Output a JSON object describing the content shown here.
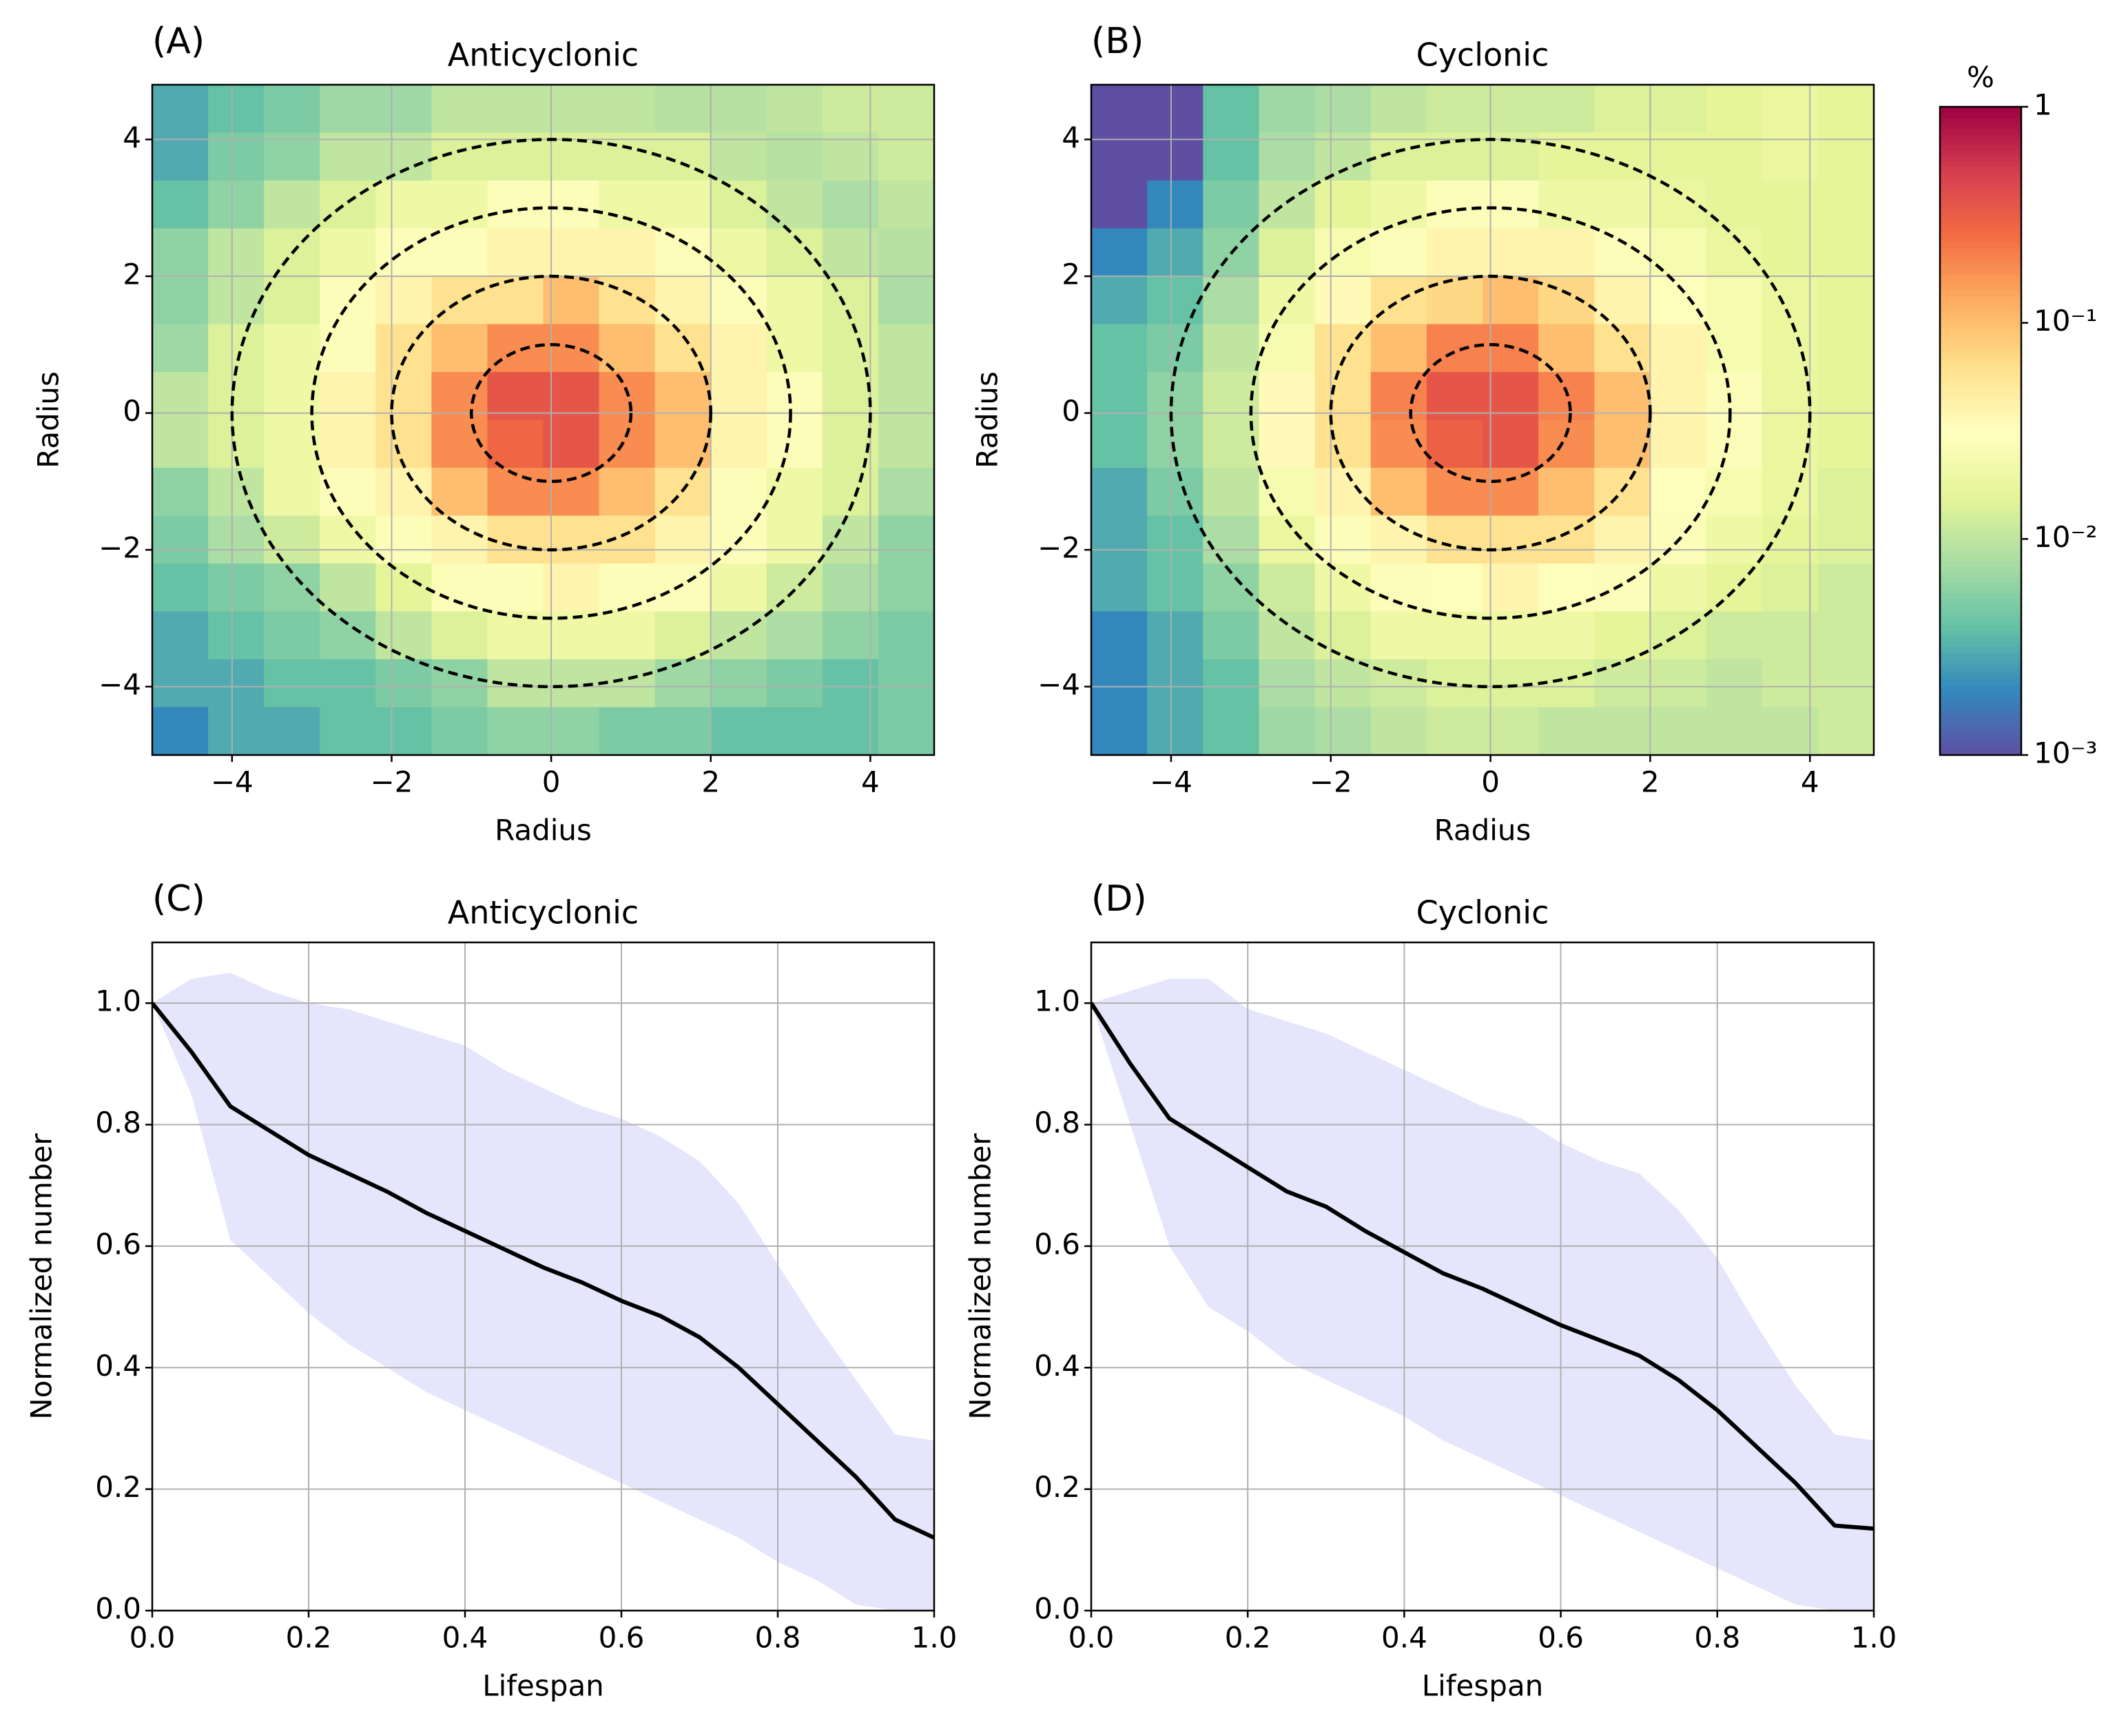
{
  "chart_data": [
    {
      "type": "heatmap",
      "label": "(A)",
      "title": "Anticyclonic",
      "xlabel": "Radius",
      "ylabel": "Radius",
      "x": [
        -4.65,
        -3.95,
        -3.25,
        -2.55,
        -1.85,
        -1.15,
        -0.45,
        0.25,
        0.95,
        1.65,
        2.35,
        3.05,
        3.75,
        4.45
      ],
      "y": [
        4.45,
        3.75,
        3.05,
        2.35,
        1.65,
        0.95,
        0.25,
        -0.45,
        -1.15,
        -1.85,
        -2.55,
        -3.25,
        -3.95,
        -4.65
      ],
      "z": [
        [
          0.003,
          0.004,
          0.005,
          0.007,
          0.007,
          0.01,
          0.01,
          0.01,
          0.01,
          0.009,
          0.009,
          0.01,
          0.012,
          0.012
        ],
        [
          0.003,
          0.005,
          0.006,
          0.01,
          0.01,
          0.014,
          0.014,
          0.014,
          0.014,
          0.014,
          0.01,
          0.009,
          0.01,
          0.012
        ],
        [
          0.004,
          0.006,
          0.01,
          0.014,
          0.02,
          0.02,
          0.028,
          0.028,
          0.02,
          0.02,
          0.014,
          0.01,
          0.008,
          0.01
        ],
        [
          0.006,
          0.01,
          0.014,
          0.02,
          0.028,
          0.028,
          0.04,
          0.04,
          0.04,
          0.028,
          0.02,
          0.014,
          0.01,
          0.009
        ],
        [
          0.006,
          0.01,
          0.014,
          0.028,
          0.04,
          0.06,
          0.06,
          0.1,
          0.06,
          0.04,
          0.028,
          0.02,
          0.014,
          0.008
        ],
        [
          0.007,
          0.014,
          0.02,
          0.028,
          0.06,
          0.1,
          0.18,
          0.18,
          0.1,
          0.06,
          0.04,
          0.02,
          0.014,
          0.01
        ],
        [
          0.01,
          0.014,
          0.02,
          0.04,
          0.06,
          0.18,
          0.35,
          0.35,
          0.18,
          0.1,
          0.04,
          0.028,
          0.014,
          0.01
        ],
        [
          0.01,
          0.014,
          0.02,
          0.04,
          0.06,
          0.18,
          0.28,
          0.35,
          0.18,
          0.1,
          0.04,
          0.028,
          0.014,
          0.01
        ],
        [
          0.006,
          0.01,
          0.02,
          0.028,
          0.04,
          0.1,
          0.18,
          0.18,
          0.1,
          0.06,
          0.028,
          0.02,
          0.014,
          0.008
        ],
        [
          0.005,
          0.008,
          0.012,
          0.02,
          0.028,
          0.04,
          0.06,
          0.06,
          0.06,
          0.04,
          0.028,
          0.02,
          0.01,
          0.006
        ],
        [
          0.004,
          0.005,
          0.006,
          0.01,
          0.016,
          0.028,
          0.028,
          0.04,
          0.028,
          0.028,
          0.02,
          0.012,
          0.008,
          0.006
        ],
        [
          0.003,
          0.004,
          0.005,
          0.006,
          0.01,
          0.014,
          0.02,
          0.02,
          0.02,
          0.014,
          0.01,
          0.008,
          0.006,
          0.005
        ],
        [
          0.003,
          0.003,
          0.004,
          0.004,
          0.005,
          0.006,
          0.01,
          0.01,
          0.01,
          0.007,
          0.006,
          0.005,
          0.004,
          0.005
        ],
        [
          0.002,
          0.003,
          0.003,
          0.004,
          0.004,
          0.005,
          0.006,
          0.006,
          0.005,
          0.005,
          0.004,
          0.004,
          0.004,
          0.005
        ]
      ],
      "circles": [
        1,
        2,
        3,
        4
      ],
      "xlim": [
        -5,
        4.8
      ],
      "ylim": [
        -5,
        4.8
      ],
      "xticks": [
        {
          "value": -4,
          "label": "−4"
        },
        {
          "value": -2,
          "label": "−2"
        },
        0,
        2,
        4
      ],
      "yticks": [
        {
          "value": -4,
          "label": "−4"
        },
        {
          "value": -2,
          "label": "−2"
        },
        0,
        2,
        4
      ],
      "zlim": [
        0.001,
        1
      ],
      "log_color": true,
      "grid": true
    },
    {
      "type": "heatmap",
      "label": "(B)",
      "title": "Cyclonic",
      "xlabel": "Radius",
      "ylabel": "Radius",
      "x": [
        -4.65,
        -3.95,
        -3.25,
        -2.55,
        -1.85,
        -1.15,
        -0.45,
        0.25,
        0.95,
        1.65,
        2.35,
        3.05,
        3.75,
        4.45
      ],
      "y": [
        4.45,
        3.75,
        3.05,
        2.35,
        1.65,
        0.95,
        0.25,
        -0.45,
        -1.15,
        -1.85,
        -2.55,
        -3.25,
        -3.95,
        -4.65
      ],
      "z": [
        [
          0.001,
          0.001,
          0.004,
          0.007,
          0.008,
          0.01,
          0.012,
          0.012,
          0.012,
          0.014,
          0.014,
          0.016,
          0.018,
          0.016
        ],
        [
          0.001,
          0.001,
          0.004,
          0.008,
          0.01,
          0.014,
          0.014,
          0.014,
          0.016,
          0.016,
          0.016,
          0.016,
          0.018,
          0.016
        ],
        [
          0.001,
          0.002,
          0.005,
          0.01,
          0.016,
          0.02,
          0.028,
          0.028,
          0.02,
          0.02,
          0.018,
          0.016,
          0.016,
          0.016
        ],
        [
          0.002,
          0.003,
          0.006,
          0.014,
          0.024,
          0.028,
          0.04,
          0.04,
          0.04,
          0.028,
          0.024,
          0.018,
          0.016,
          0.016
        ],
        [
          0.003,
          0.004,
          0.008,
          0.02,
          0.035,
          0.06,
          0.07,
          0.1,
          0.07,
          0.04,
          0.03,
          0.024,
          0.018,
          0.016
        ],
        [
          0.004,
          0.005,
          0.01,
          0.024,
          0.06,
          0.1,
          0.2,
          0.2,
          0.1,
          0.06,
          0.04,
          0.024,
          0.018,
          0.016
        ],
        [
          0.004,
          0.006,
          0.012,
          0.035,
          0.06,
          0.2,
          0.35,
          0.35,
          0.2,
          0.1,
          0.04,
          0.028,
          0.018,
          0.016
        ],
        [
          0.004,
          0.006,
          0.012,
          0.035,
          0.06,
          0.18,
          0.3,
          0.35,
          0.18,
          0.1,
          0.04,
          0.028,
          0.018,
          0.016
        ],
        [
          0.003,
          0.005,
          0.01,
          0.024,
          0.04,
          0.1,
          0.18,
          0.18,
          0.1,
          0.06,
          0.03,
          0.024,
          0.018,
          0.014
        ],
        [
          0.003,
          0.004,
          0.008,
          0.018,
          0.028,
          0.04,
          0.06,
          0.06,
          0.06,
          0.04,
          0.028,
          0.02,
          0.016,
          0.014
        ],
        [
          0.003,
          0.004,
          0.006,
          0.012,
          0.02,
          0.028,
          0.03,
          0.04,
          0.03,
          0.028,
          0.02,
          0.016,
          0.014,
          0.012
        ],
        [
          0.002,
          0.003,
          0.005,
          0.01,
          0.014,
          0.02,
          0.02,
          0.02,
          0.02,
          0.016,
          0.014,
          0.012,
          0.012,
          0.012
        ],
        [
          0.002,
          0.003,
          0.004,
          0.008,
          0.01,
          0.012,
          0.014,
          0.014,
          0.014,
          0.012,
          0.012,
          0.01,
          0.012,
          0.012
        ],
        [
          0.002,
          0.003,
          0.004,
          0.007,
          0.008,
          0.01,
          0.012,
          0.012,
          0.01,
          0.01,
          0.01,
          0.01,
          0.01,
          0.012
        ]
      ],
      "circles": [
        1,
        2,
        3,
        4
      ],
      "xlim": [
        -5,
        4.8
      ],
      "ylim": [
        -5,
        4.8
      ],
      "xticks": [
        {
          "value": -4,
          "label": "−4"
        },
        {
          "value": -2,
          "label": "−2"
        },
        0,
        2,
        4
      ],
      "yticks": [
        {
          "value": -4,
          "label": "−4"
        },
        {
          "value": -2,
          "label": "−2"
        },
        0,
        2,
        4
      ],
      "zlim": [
        0.001,
        1
      ],
      "log_color": true,
      "grid": true,
      "colorbar": {
        "label": "%",
        "lim": [
          0.001,
          1
        ],
        "log": true,
        "ticks": [
          {
            "value": 0.001,
            "label": "10⁻³"
          },
          {
            "value": 0.01,
            "label": "10⁻²"
          },
          {
            "value": 0.1,
            "label": "10⁻¹"
          },
          1
        ]
      }
    },
    {
      "type": "line",
      "label": "(C)",
      "title": "Anticyclonic",
      "xlabel": "Lifespan",
      "ylabel": "Normalized number",
      "x": [
        0,
        0.05,
        0.1,
        0.15,
        0.2,
        0.25,
        0.3,
        0.35,
        0.4,
        0.45,
        0.5,
        0.55,
        0.6,
        0.65,
        0.7,
        0.75,
        0.8,
        0.85,
        0.9,
        0.95,
        1
      ],
      "values": [
        1.0,
        0.92,
        0.83,
        0.79,
        0.75,
        0.72,
        0.69,
        0.655,
        0.625,
        0.595,
        0.565,
        0.54,
        0.51,
        0.485,
        0.45,
        0.4,
        0.34,
        0.28,
        0.22,
        0.15,
        0.12
      ],
      "band_upper": [
        1.0,
        1.04,
        1.05,
        1.02,
        1.0,
        0.99,
        0.97,
        0.95,
        0.93,
        0.89,
        0.86,
        0.83,
        0.81,
        0.78,
        0.74,
        0.67,
        0.57,
        0.47,
        0.38,
        0.29,
        0.28
      ],
      "band_lower": [
        1.0,
        0.85,
        0.61,
        0.55,
        0.49,
        0.44,
        0.4,
        0.36,
        0.33,
        0.3,
        0.27,
        0.24,
        0.21,
        0.18,
        0.15,
        0.12,
        0.08,
        0.05,
        0.01,
        0.0,
        0.0
      ],
      "color": "#000000",
      "band_color": "#e5e5fb",
      "xlim": [
        0,
        1
      ],
      "ylim": [
        0,
        1.1
      ],
      "xticks": [
        {
          "value": 0,
          "label": "0.0"
        },
        0.2,
        0.4,
        0.6,
        0.8,
        {
          "value": 1,
          "label": "1.0"
        }
      ],
      "yticks": [
        {
          "value": 0,
          "label": "0.0"
        },
        0.2,
        0.4,
        0.6,
        0.8,
        {
          "value": 1,
          "label": "1.0"
        }
      ],
      "grid": true
    },
    {
      "type": "line",
      "label": "(D)",
      "title": "Cyclonic",
      "xlabel": "Lifespan",
      "ylabel": "Normalized number",
      "x": [
        0,
        0.05,
        0.1,
        0.15,
        0.2,
        0.25,
        0.3,
        0.35,
        0.4,
        0.45,
        0.5,
        0.55,
        0.6,
        0.65,
        0.7,
        0.75,
        0.8,
        0.85,
        0.9,
        0.95,
        1
      ],
      "values": [
        1.0,
        0.9,
        0.81,
        0.77,
        0.73,
        0.69,
        0.665,
        0.625,
        0.59,
        0.555,
        0.53,
        0.5,
        0.47,
        0.445,
        0.42,
        0.38,
        0.33,
        0.27,
        0.21,
        0.14,
        0.135
      ],
      "band_upper": [
        1.0,
        1.02,
        1.04,
        1.04,
        0.99,
        0.97,
        0.95,
        0.92,
        0.89,
        0.86,
        0.83,
        0.81,
        0.77,
        0.74,
        0.72,
        0.66,
        0.58,
        0.47,
        0.37,
        0.29,
        0.28
      ],
      "band_lower": [
        1.0,
        0.8,
        0.6,
        0.5,
        0.46,
        0.41,
        0.38,
        0.35,
        0.32,
        0.28,
        0.25,
        0.22,
        0.19,
        0.16,
        0.13,
        0.1,
        0.07,
        0.04,
        0.01,
        0.0,
        0.0
      ],
      "color": "#000000",
      "band_color": "#e5e5fb",
      "xlim": [
        0,
        1
      ],
      "ylim": [
        0,
        1.1
      ],
      "xticks": [
        {
          "value": 0,
          "label": "0.0"
        },
        0.2,
        0.4,
        0.6,
        0.8,
        {
          "value": 1,
          "label": "1.0"
        }
      ],
      "yticks": [
        {
          "value": 0,
          "label": "0.0"
        },
        0.2,
        0.4,
        0.6,
        0.8,
        {
          "value": 1,
          "label": "1.0"
        }
      ],
      "grid": true
    }
  ]
}
